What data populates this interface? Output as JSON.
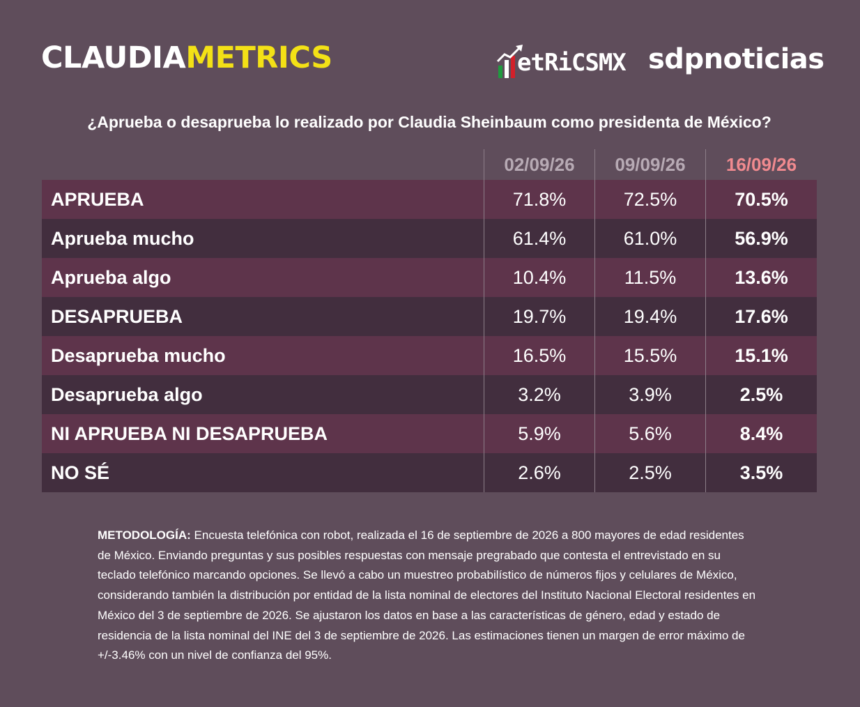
{
  "brand": {
    "part1": "CLAUDIA",
    "part2": "METRICS"
  },
  "logos": {
    "metrics_text": "etRiCSMX",
    "sdp": "sdpnoticias"
  },
  "colors": {
    "background": "#5f4d5b",
    "row_odd": "#5e344b",
    "row_even": "#422e3e",
    "brand_yellow": "#f3e116",
    "header_date": "#b7aab4",
    "header_latest": "#f08a8f"
  },
  "chart_data": {
    "type": "table",
    "title": "¿Aprueba o desaprueba lo realizado por Claudia Sheinbaum como presidenta de México?",
    "columns": [
      "02/09/26",
      "09/09/26",
      "16/09/26"
    ],
    "rows": [
      {
        "label": "APRUEBA",
        "values": [
          "71.8%",
          "72.5%",
          "70.5%"
        ]
      },
      {
        "label": "Aprueba mucho",
        "values": [
          "61.4%",
          "61.0%",
          "56.9%"
        ]
      },
      {
        "label": "Aprueba algo",
        "values": [
          "10.4%",
          "11.5%",
          "13.6%"
        ]
      },
      {
        "label": "DESAPRUEBA",
        "values": [
          "19.7%",
          "19.4%",
          "17.6%"
        ]
      },
      {
        "label": "Desaprueba mucho",
        "values": [
          "16.5%",
          "15.5%",
          "15.1%"
        ]
      },
      {
        "label": "Desaprueba algo",
        "values": [
          "3.2%",
          "3.9%",
          "2.5%"
        ]
      },
      {
        "label": "NI APRUEBA NI DESAPRUEBA",
        "values": [
          "5.9%",
          "5.6%",
          "8.4%"
        ]
      },
      {
        "label": "NO SÉ",
        "values": [
          "2.6%",
          "2.5%",
          "3.5%"
        ]
      }
    ]
  },
  "methodology": {
    "label": "METODOLOGÍA:",
    "text": " Encuesta telefónica con robot, realizada el 16 de septiembre de 2026 a 800 mayores de edad residentes de México. Enviando preguntas y sus posibles respuestas con mensaje pregrabado que contesta el entrevistado en su teclado telefónico marcando opciones. Se llevó a cabo un muestreo probabilístico de números fijos y celulares de México, considerando también la distribución por entidad de la lista nominal de electores del Instituto Nacional Electoral residentes en México del 3 de septiembre de 2026. Se ajustaron los datos en base a las características de género, edad y estado de residencia de la lista nominal del INE del 3 de septiembre de 2026. Las estimaciones tienen un margen de error máximo de +/-3.46% con un nivel de confianza del 95%."
  }
}
